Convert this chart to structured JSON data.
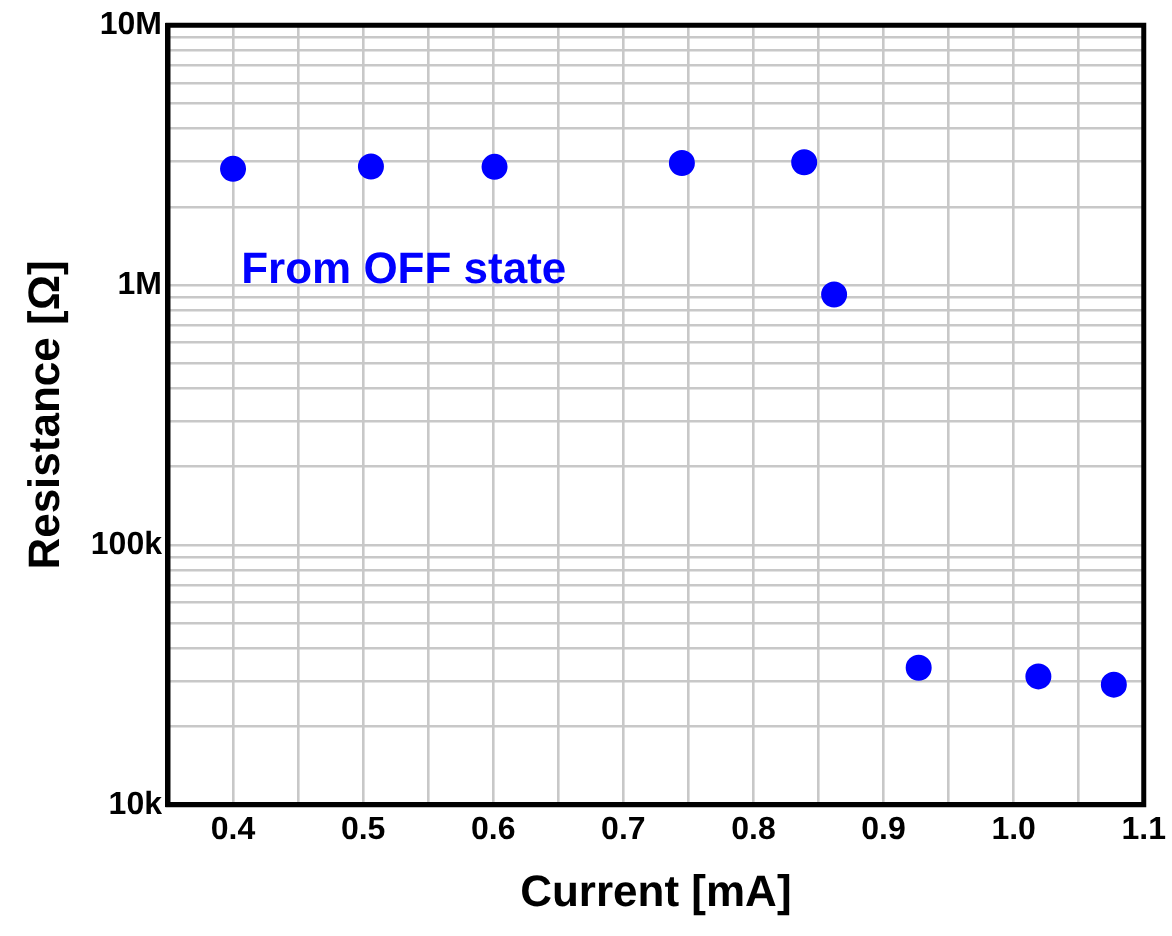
{
  "chart_data": {
    "type": "scatter",
    "xlabel": "Current [mA]",
    "ylabel": "Resistance [Ω]",
    "annotations": [
      "From OFF state"
    ],
    "x": [
      0.4,
      0.506,
      0.601,
      0.745,
      0.839,
      0.862,
      0.927,
      1.019,
      1.077
    ],
    "series": [
      {
        "color": "#0000ff",
        "values": [
          2800000,
          2860000,
          2850000,
          2950000,
          2970000,
          920000,
          33700,
          31200,
          29000
        ]
      }
    ],
    "log": "y",
    "grid": true,
    "marker": "circle",
    "legend": false,
    "xlim": [
      0.35,
      1.1
    ],
    "xticks": [
      0.4,
      {
        "value": 0.45,
        "label": null
      },
      0.5,
      {
        "value": 0.55,
        "label": null
      },
      0.6,
      {
        "value": 0.65,
        "label": null
      },
      0.7,
      {
        "value": 0.75,
        "label": null
      },
      0.8,
      {
        "value": 0.85,
        "label": null
      },
      0.9,
      {
        "value": 0.95,
        "label": null
      },
      {
        "value": 1.0,
        "label": "1.0"
      },
      {
        "value": 1.05,
        "label": null
      },
      1.1
    ],
    "ylim": [
      10000,
      10000000
    ],
    "yticks": [
      {
        "value": 10000,
        "label": "10k"
      },
      {
        "value": 20000,
        "label": null
      },
      {
        "value": 30000,
        "label": null
      },
      {
        "value": 40000,
        "label": null
      },
      {
        "value": 50000,
        "label": null
      },
      {
        "value": 60000,
        "label": null
      },
      {
        "value": 70000,
        "label": null
      },
      {
        "value": 80000,
        "label": null
      },
      {
        "value": 90000,
        "label": null
      },
      {
        "value": 100000,
        "label": "100k"
      },
      {
        "value": 200000,
        "label": null
      },
      {
        "value": 300000,
        "label": null
      },
      {
        "value": 400000,
        "label": null
      },
      {
        "value": 500000,
        "label": null
      },
      {
        "value": 600000,
        "label": null
      },
      {
        "value": 700000,
        "label": null
      },
      {
        "value": 800000,
        "label": null
      },
      {
        "value": 900000,
        "label": null
      },
      {
        "value": 1000000,
        "label": "1M"
      },
      {
        "value": 2000000,
        "label": null
      },
      {
        "value": 3000000,
        "label": null
      },
      {
        "value": 4000000,
        "label": null
      },
      {
        "value": 5000000,
        "label": null
      },
      {
        "value": 6000000,
        "label": null
      },
      {
        "value": 7000000,
        "label": null
      },
      {
        "value": 8000000,
        "label": null
      },
      {
        "value": 9000000,
        "label": null
      },
      {
        "value": 10000000,
        "label": "10M"
      }
    ]
  }
}
